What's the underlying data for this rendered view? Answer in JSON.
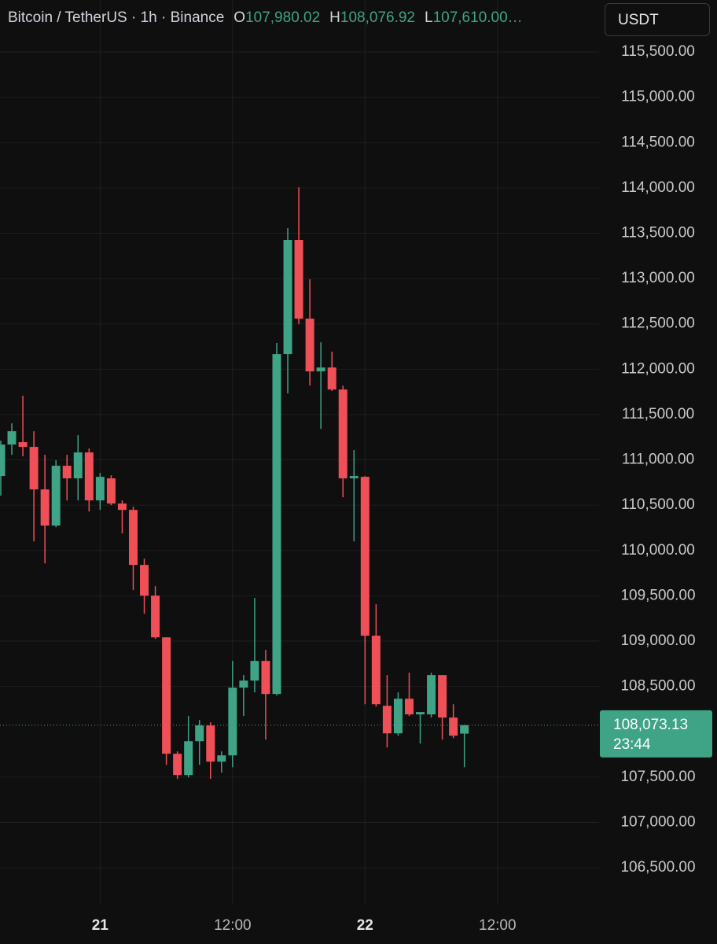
{
  "chart_data": {
    "type": "candlestick",
    "header": {
      "symbol": "Bitcoin / TetherUS · 1h · Binance",
      "ohlc": [
        {
          "key": "O",
          "label": "107,980.02"
        },
        {
          "key": "H",
          "label": "108,076.92"
        },
        {
          "key": "L",
          "label": "107,610.00…"
        }
      ]
    },
    "currency": "USDT",
    "categories": [
      null,
      null,
      null,
      null,
      null,
      null,
      null,
      null,
      null,
      "21",
      null,
      null,
      null,
      null,
      null,
      null,
      null,
      null,
      null,
      null,
      null,
      "12:00",
      null,
      null,
      null,
      null,
      null,
      null,
      null,
      null,
      null,
      null,
      null,
      "22",
      null,
      null,
      null,
      null,
      null,
      null,
      null,
      null,
      null,
      null,
      null,
      "12:00"
    ],
    "open": [
      110822,
      111169,
      111195,
      111143,
      110674,
      110275,
      110935,
      110796,
      111082,
      110553,
      110796,
      110518,
      110448,
      109841,
      109502,
      109042,
      107758,
      107523,
      107896,
      108070,
      107671,
      107740,
      108487,
      108565,
      108782,
      108417,
      112167,
      113426,
      112558,
      111976,
      112019,
      111776,
      110796,
      110813,
      109060,
      108287,
      107983,
      108365,
      108192,
      108192,
      108626,
      108157,
      107980.02,
      null,
      null,
      null
    ],
    "high": [
      111212,
      111403,
      111707,
      111316,
      111056,
      110995,
      111056,
      111273,
      111125,
      110856,
      110830,
      110553,
      110483,
      109910,
      109606,
      109042,
      107784,
      108174,
      108131,
      108105,
      107784,
      108782,
      108626,
      109476,
      108903,
      112289,
      113556,
      114007,
      112992,
      112297,
      112193,
      111820,
      111108,
      110822,
      109407,
      108626,
      108435,
      108652,
      108218,
      108652,
      108626,
      108304,
      108076.92,
      null,
      null,
      null
    ],
    "low": [
      110605,
      111056,
      111039,
      110101,
      109858,
      110257,
      110553,
      110553,
      110431,
      110448,
      110500,
      110188,
      109563,
      109303,
      109025,
      107636,
      107480,
      107497,
      107636,
      107480,
      107549,
      107610,
      108174,
      108435,
      107914,
      108400,
      111733,
      112497,
      111820,
      111342,
      111759,
      110587,
      110101,
      108304,
      108278,
      107827,
      107957,
      108174,
      107870,
      108157,
      107914,
      107931,
      107610.0,
      null,
      null,
      null
    ],
    "close": [
      111169,
      111316,
      111143,
      110674,
      110275,
      110935,
      110796,
      111082,
      110553,
      110813,
      110518,
      110448,
      109841,
      109502,
      109042,
      107758,
      107523,
      107896,
      108070,
      107671,
      107740,
      108487,
      108565,
      108782,
      108417,
      112167,
      113426,
      112558,
      111976,
      112019,
      111776,
      110796,
      110822,
      109060,
      108304,
      107983,
      108365,
      108192,
      108218,
      108626,
      108157,
      107957,
      108073.13,
      null,
      null,
      null
    ],
    "up_color": "#3fa386",
    "down_color": "#ef4f57",
    "ylim": [
      106093,
      116073
    ],
    "yticks": [
      {
        "value": 106500,
        "label": "106,500.00"
      },
      {
        "value": 107000,
        "label": "107,000.00"
      },
      {
        "value": 107500,
        "label": "107,500.00"
      },
      {
        "value": 108500,
        "label": "108,500.00"
      },
      {
        "value": 109000,
        "label": "109,000.00"
      },
      {
        "value": 109500,
        "label": "109,500.00"
      },
      {
        "value": 110000,
        "label": "110,000.00"
      },
      {
        "value": 110500,
        "label": "110,500.00"
      },
      {
        "value": 111000,
        "label": "111,000.00"
      },
      {
        "value": 111500,
        "label": "111,500.00"
      },
      {
        "value": 112000,
        "label": "112,000.00"
      },
      {
        "value": 112500,
        "label": "112,500.00"
      },
      {
        "value": 113000,
        "label": "113,000.00"
      },
      {
        "value": 113500,
        "label": "113,500.00"
      },
      {
        "value": 114000,
        "label": "114,000.00"
      },
      {
        "value": 114500,
        "label": "114,500.00"
      },
      {
        "value": 115000,
        "label": "115,000.00"
      },
      {
        "value": 115500,
        "label": "115,500.00"
      }
    ],
    "grid": true,
    "last_price": {
      "value": 108073.13,
      "label": "108,073.13",
      "countdown": "23:44"
    }
  }
}
